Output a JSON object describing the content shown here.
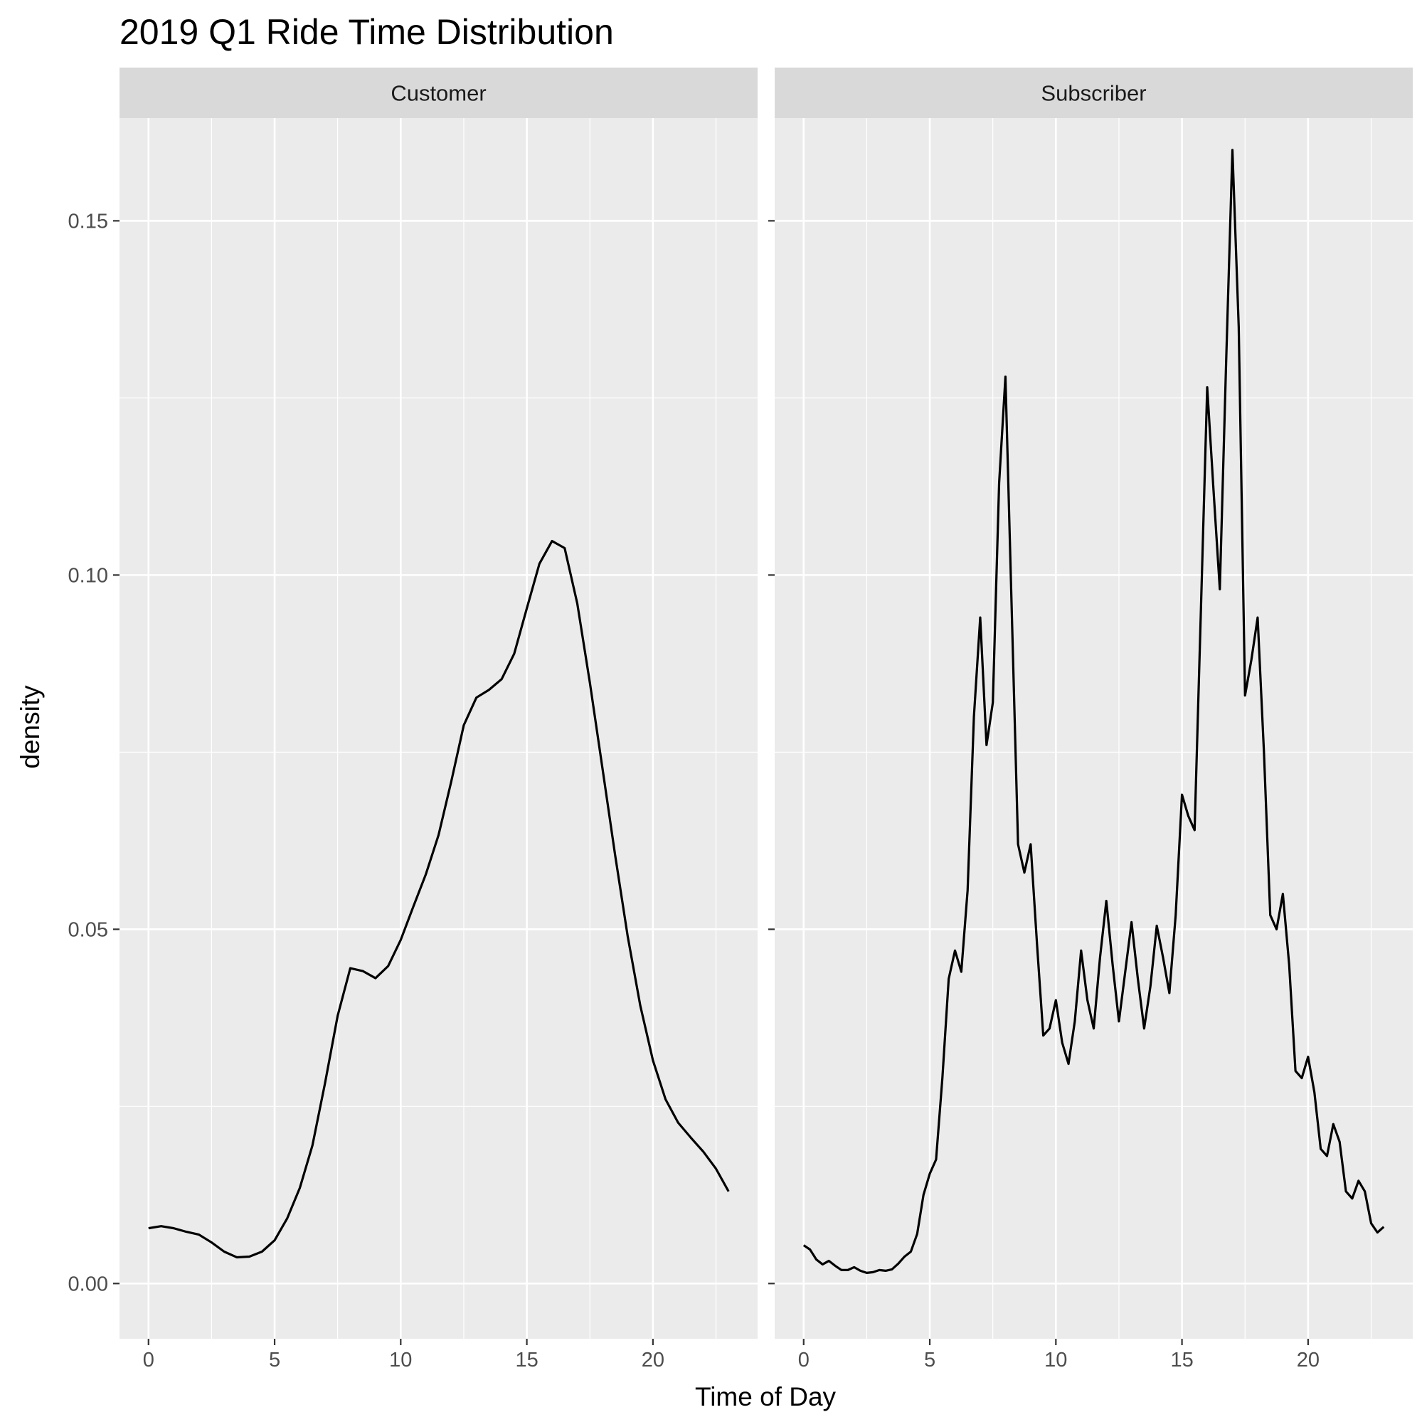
{
  "chart_data": {
    "type": "line",
    "subtype": "faceted-density",
    "title": "2019 Q1 Ride Time Distribution",
    "xlabel": "Time of Day",
    "ylabel": "density",
    "xlim": [
      -1.15,
      24.15
    ],
    "ylim": [
      -0.0078,
      0.1645
    ],
    "x_ticks": [
      0,
      5,
      10,
      15,
      20
    ],
    "y_ticks": [
      0.0,
      0.05,
      0.1,
      0.15
    ],
    "y_tick_labels": [
      "0.00",
      "0.05",
      "0.10",
      "0.15"
    ],
    "grid": true,
    "legend": "none",
    "panels": [
      {
        "name": "Customer",
        "x": [
          0,
          0.5,
          1,
          1.5,
          2,
          2.5,
          3,
          3.5,
          4,
          4.5,
          5,
          5.5,
          6,
          6.5,
          7,
          7.5,
          8,
          8.5,
          9,
          9.5,
          10,
          10.5,
          11,
          11.5,
          12,
          12.5,
          13,
          13.5,
          14,
          14.5,
          15,
          15.5,
          16,
          16.5,
          17,
          17.5,
          18,
          18.5,
          19,
          19.5,
          20,
          20.5,
          21,
          21.5,
          22,
          22.5,
          23
        ],
        "y": [
          0.0078,
          0.0081,
          0.0078,
          0.0073,
          0.0069,
          0.0058,
          0.0045,
          0.0037,
          0.0038,
          0.0045,
          0.0061,
          0.0092,
          0.0135,
          0.0195,
          0.0283,
          0.0378,
          0.0445,
          0.0441,
          0.0431,
          0.0448,
          0.0485,
          0.0532,
          0.0578,
          0.0633,
          0.0708,
          0.0788,
          0.0827,
          0.0838,
          0.0853,
          0.0889,
          0.0953,
          0.1016,
          0.1048,
          0.1038,
          0.096,
          0.0848,
          0.0727,
          0.0605,
          0.049,
          0.0392,
          0.0315,
          0.026,
          0.0227,
          0.0206,
          0.0186,
          0.0162,
          0.013
        ]
      },
      {
        "name": "Subscriber",
        "x": [
          0,
          0.25,
          0.5,
          0.75,
          1,
          1.25,
          1.5,
          1.75,
          2,
          2.25,
          2.5,
          2.75,
          3,
          3.25,
          3.5,
          3.75,
          4,
          4.25,
          4.5,
          4.75,
          5,
          5.25,
          5.5,
          5.75,
          6,
          6.25,
          6.5,
          6.75,
          7,
          7.25,
          7.5,
          7.75,
          8,
          8.25,
          8.5,
          8.75,
          9,
          9.25,
          9.5,
          9.75,
          10,
          10.25,
          10.5,
          10.75,
          11,
          11.25,
          11.5,
          11.75,
          12,
          12.25,
          12.5,
          12.75,
          13,
          13.25,
          13.5,
          13.75,
          14,
          14.25,
          14.5,
          14.75,
          15,
          15.25,
          15.5,
          15.75,
          16,
          16.25,
          16.5,
          16.75,
          17,
          17.25,
          17.5,
          17.75,
          18,
          18.25,
          18.5,
          18.75,
          19,
          19.25,
          19.5,
          19.75,
          20,
          20.25,
          20.5,
          20.75,
          21,
          21.25,
          21.5,
          21.75,
          22,
          22.25,
          22.5,
          22.75,
          23
        ],
        "y": [
          0.0054,
          0.0048,
          0.0034,
          0.0027,
          0.0032,
          0.0025,
          0.0019,
          0.0019,
          0.0023,
          0.0018,
          0.0015,
          0.0016,
          0.0019,
          0.0018,
          0.002,
          0.0028,
          0.0038,
          0.0045,
          0.007,
          0.0125,
          0.0155,
          0.0175,
          0.029,
          0.043,
          0.047,
          0.044,
          0.0555,
          0.08,
          0.094,
          0.076,
          0.082,
          0.113,
          0.128,
          0.095,
          0.062,
          0.058,
          0.062,
          0.048,
          0.035,
          0.036,
          0.04,
          0.034,
          0.031,
          0.037,
          0.047,
          0.04,
          0.036,
          0.046,
          0.054,
          0.045,
          0.037,
          0.044,
          0.051,
          0.043,
          0.036,
          0.042,
          0.0505,
          0.046,
          0.041,
          0.052,
          0.069,
          0.066,
          0.064,
          0.095,
          0.1265,
          0.112,
          0.098,
          0.13,
          0.16,
          0.135,
          0.083,
          0.088,
          0.094,
          0.075,
          0.052,
          0.05,
          0.055,
          0.045,
          0.03,
          0.029,
          0.032,
          0.027,
          0.019,
          0.018,
          0.0225,
          0.02,
          0.013,
          0.012,
          0.0145,
          0.013,
          0.0085,
          0.0072,
          0.008
        ]
      }
    ]
  },
  "colors": {
    "panel_background": "#ebebeb",
    "grid_major": "#ffffff",
    "grid_minor": "#f7f7f7",
    "strip_background": "#d9d9d9",
    "line": "#000000",
    "axis_ticks": "#333333"
  }
}
